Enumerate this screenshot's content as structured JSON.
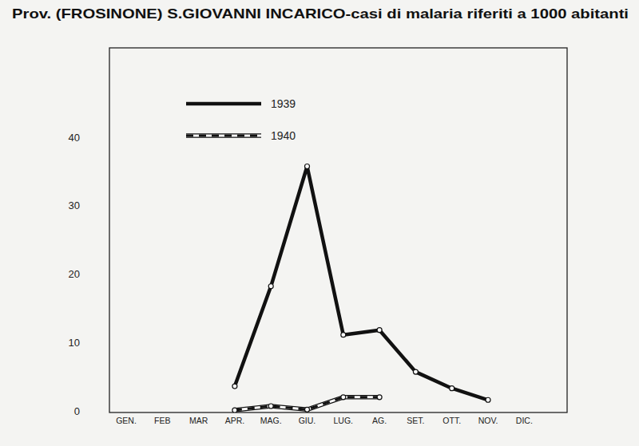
{
  "chart_data": {
    "type": "line",
    "title": "Prov. (FROSINONE) S.GIOVANNI INCARICO-casi di malaria riferiti a 1000 abitanti",
    "categories": [
      "GEN.",
      "FEB",
      "MAR",
      "APR.",
      "MAG.",
      "GIU.",
      "LUG.",
      "AG.",
      "SET.",
      "OTT.",
      "NOV.",
      "DIC."
    ],
    "series": [
      {
        "name": "1939",
        "color": "#111111",
        "line_style": "solid",
        "marker": "circle",
        "values": [
          null,
          null,
          null,
          3.6,
          18.2,
          35.7,
          11.1,
          11.8,
          5.7,
          3.3,
          1.6,
          null
        ]
      },
      {
        "name": "1940",
        "color": "#111111",
        "line_style": "dashed",
        "marker": "circle",
        "values": [
          null,
          null,
          null,
          0.1,
          0.7,
          0.2,
          2.0,
          2.0,
          null,
          null,
          null,
          null
        ]
      }
    ],
    "ylim": [
      0,
      53
    ],
    "yticks": [
      0,
      10,
      20,
      30,
      40
    ],
    "grid": false,
    "legend": "top-left"
  }
}
